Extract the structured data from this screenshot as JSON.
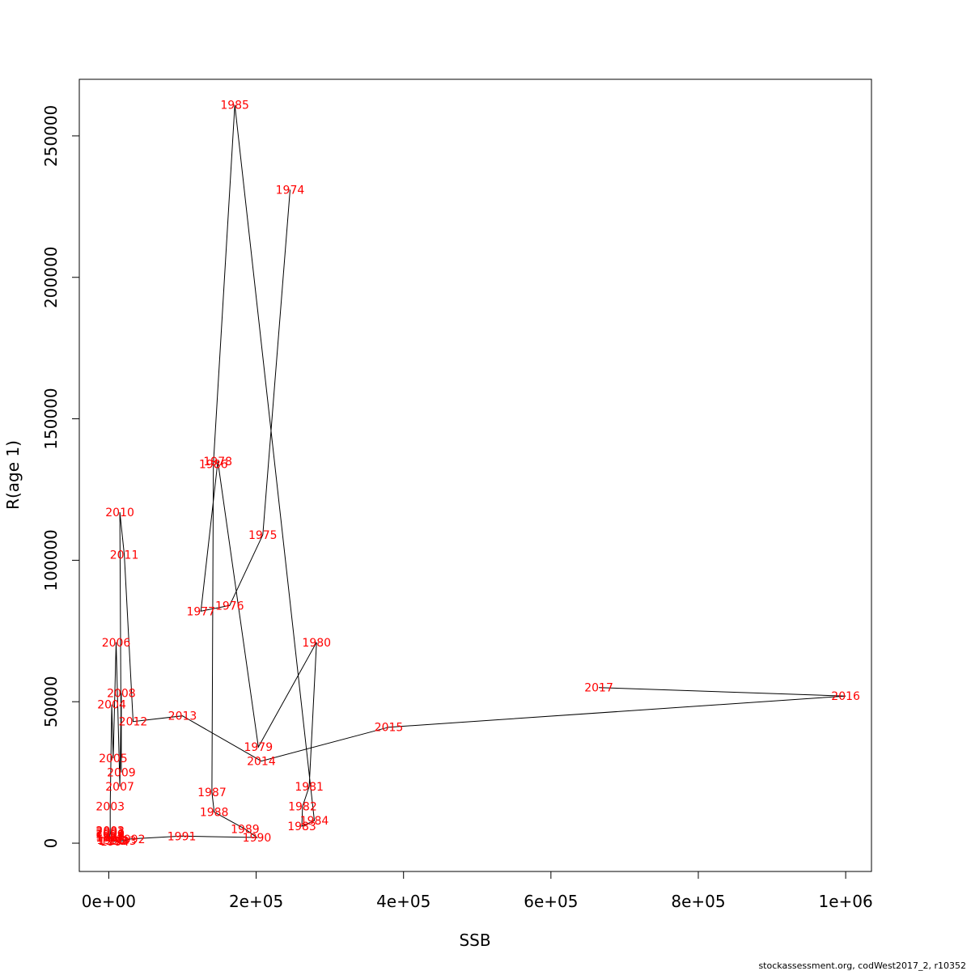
{
  "chart_data": {
    "type": "line",
    "title": "",
    "xlabel": "SSB",
    "ylabel": "R(age 1)",
    "xlim": [
      -40000,
      1035000
    ],
    "ylim": [
      -10000,
      270000
    ],
    "x_ticks": [
      0,
      200000,
      400000,
      600000,
      800000,
      1000000
    ],
    "x_tick_labels": [
      "0e+00",
      "2e+05",
      "4e+05",
      "6e+05",
      "8e+05",
      "1e+06"
    ],
    "y_ticks": [
      0,
      50000,
      100000,
      150000,
      200000,
      250000
    ],
    "y_tick_labels": [
      "0",
      "50000",
      "100000",
      "150000",
      "200000",
      "250000"
    ],
    "grid": false,
    "legend": "none",
    "line_color": "#000000",
    "label_color": "#ff0000",
    "footer": "stockassessment.org, codWest2017_2, r10352",
    "points": [
      {
        "year": "1974",
        "ssb": 246000,
        "r": 231000
      },
      {
        "year": "1975",
        "ssb": 209000,
        "r": 109000
      },
      {
        "year": "1976",
        "ssb": 164000,
        "r": 84000
      },
      {
        "year": "1977",
        "ssb": 125000,
        "r": 82000
      },
      {
        "year": "1978",
        "ssb": 148000,
        "r": 135000
      },
      {
        "year": "1979",
        "ssb": 203000,
        "r": 34000
      },
      {
        "year": "1980",
        "ssb": 282000,
        "r": 71000
      },
      {
        "year": "1981",
        "ssb": 272000,
        "r": 20000
      },
      {
        "year": "1982",
        "ssb": 263000,
        "r": 13000
      },
      {
        "year": "1983",
        "ssb": 262000,
        "r": 6000
      },
      {
        "year": "1984",
        "ssb": 279000,
        "r": 8000
      },
      {
        "year": "1985",
        "ssb": 171000,
        "r": 261000
      },
      {
        "year": "1986",
        "ssb": 142000,
        "r": 134000
      },
      {
        "year": "1987",
        "ssb": 140000,
        "r": 18000
      },
      {
        "year": "1988",
        "ssb": 143000,
        "r": 11000
      },
      {
        "year": "1989",
        "ssb": 185000,
        "r": 5000
      },
      {
        "year": "1990",
        "ssb": 201000,
        "r": 2000
      },
      {
        "year": "1991",
        "ssb": 99000,
        "r": 2500
      },
      {
        "year": "1992",
        "ssb": 30000,
        "r": 1500
      },
      {
        "year": "1993",
        "ssb": 18000,
        "r": 800
      },
      {
        "year": "1994",
        "ssb": 8000,
        "r": 600
      },
      {
        "year": "1995",
        "ssb": 5000,
        "r": 900
      },
      {
        "year": "1996",
        "ssb": 3000,
        "r": 1200
      },
      {
        "year": "1997",
        "ssb": 2000,
        "r": 2000
      },
      {
        "year": "1998",
        "ssb": 1500,
        "r": 2500
      },
      {
        "year": "1999",
        "ssb": 1500,
        "r": 3000
      },
      {
        "year": "2000",
        "ssb": 2000,
        "r": 3500
      },
      {
        "year": "2001",
        "ssb": 2000,
        "r": 4000
      },
      {
        "year": "2002",
        "ssb": 2000,
        "r": 4500
      },
      {
        "year": "2003",
        "ssb": 2000,
        "r": 13000
      },
      {
        "year": "2004",
        "ssb": 4000,
        "r": 49000
      },
      {
        "year": "2005",
        "ssb": 6000,
        "r": 30000
      },
      {
        "year": "2006",
        "ssb": 10000,
        "r": 71000
      },
      {
        "year": "2007",
        "ssb": 15000,
        "r": 20000
      },
      {
        "year": "2008",
        "ssb": 17000,
        "r": 53000
      },
      {
        "year": "2009",
        "ssb": 17000,
        "r": 25000
      },
      {
        "year": "2010",
        "ssb": 15000,
        "r": 117000
      },
      {
        "year": "2011",
        "ssb": 21000,
        "r": 102000
      },
      {
        "year": "2012",
        "ssb": 33000,
        "r": 43000
      },
      {
        "year": "2013",
        "ssb": 100000,
        "r": 45000
      },
      {
        "year": "2014",
        "ssb": 207000,
        "r": 29000
      },
      {
        "year": "2015",
        "ssb": 380000,
        "r": 41000
      },
      {
        "year": "2016",
        "ssb": 1000000,
        "r": 52000
      },
      {
        "year": "2017",
        "ssb": 665000,
        "r": 55000
      }
    ]
  }
}
